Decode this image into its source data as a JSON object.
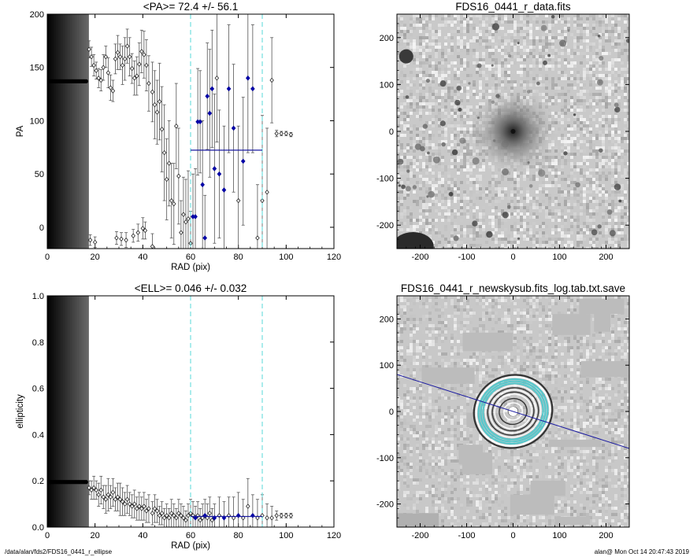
{
  "chart_data": [
    {
      "id": "pa",
      "type": "scatter",
      "title": "<PA>=  72.4 +/-  56.1",
      "xlabel": "RAD (pix)",
      "ylabel": "PA",
      "xlim": [
        0,
        120
      ],
      "ylim": [
        -20,
        200
      ],
      "xticks": [
        "0",
        "20",
        "40",
        "60",
        "80",
        "100",
        "120"
      ],
      "yticks": [
        "0",
        "50",
        "100",
        "150",
        "200"
      ],
      "xtick_values": [
        0,
        20,
        40,
        60,
        80,
        100,
        120
      ],
      "ytick_values": [
        0,
        50,
        100,
        150,
        200
      ],
      "fit_range": [
        60,
        90
      ],
      "mean_value": 72.4,
      "inner_flat_value": 137,
      "points": [
        [
          17.5,
          167,
          8
        ],
        [
          18.5,
          160,
          9
        ],
        [
          19.5,
          152,
          10
        ],
        [
          20.5,
          147,
          8
        ],
        [
          21.5,
          140,
          9
        ],
        [
          22.5,
          138,
          10
        ],
        [
          23.5,
          150,
          12
        ],
        [
          24.5,
          160,
          10
        ],
        [
          25.5,
          145,
          14
        ],
        [
          26.5,
          131,
          12
        ],
        [
          27.5,
          128,
          10
        ],
        [
          28.5,
          158,
          14
        ],
        [
          29.5,
          164,
          16
        ],
        [
          30.5,
          160,
          12
        ],
        [
          31.5,
          152,
          18
        ],
        [
          32.5,
          158,
          20
        ],
        [
          33.5,
          170,
          16
        ],
        [
          34.5,
          160,
          18
        ],
        [
          35.5,
          149,
          14
        ],
        [
          36.5,
          140,
          16
        ],
        [
          37.5,
          142,
          18
        ],
        [
          38.5,
          153,
          20
        ],
        [
          39.5,
          165,
          20
        ],
        [
          40.5,
          162,
          22
        ],
        [
          41.5,
          152,
          24
        ],
        [
          42.5,
          135,
          26
        ],
        [
          44,
          127,
          28
        ],
        [
          45,
          115,
          32
        ],
        [
          46,
          108,
          30
        ],
        [
          47,
          118,
          36
        ],
        [
          48,
          92,
          40
        ],
        [
          49,
          70,
          45
        ],
        [
          50,
          45,
          38
        ],
        [
          51,
          60,
          40
        ],
        [
          52,
          25,
          35
        ],
        [
          53,
          22,
          38
        ],
        [
          54,
          95,
          40
        ],
        [
          55,
          48,
          45
        ],
        [
          56,
          -5,
          30
        ],
        [
          57,
          12,
          35
        ],
        [
          58,
          5,
          40
        ],
        [
          59,
          8,
          45
        ],
        [
          60,
          -15,
          30
        ],
        [
          61,
          10,
          40
        ],
        [
          62,
          10,
          45
        ],
        [
          63,
          99,
          50
        ],
        [
          64,
          99,
          48
        ],
        [
          65,
          40,
          60
        ],
        [
          66,
          -10,
          40
        ],
        [
          67,
          123,
          50
        ],
        [
          68,
          107,
          60
        ],
        [
          69,
          130,
          55
        ],
        [
          70,
          55,
          70
        ],
        [
          71,
          140,
          60
        ],
        [
          72,
          50,
          60
        ],
        [
          74,
          35,
          60
        ],
        [
          76,
          130,
          60
        ],
        [
          78,
          93,
          60
        ],
        [
          80,
          25,
          70
        ],
        [
          82,
          62,
          60
        ],
        [
          84,
          140,
          70
        ],
        [
          86,
          130,
          60
        ],
        [
          88,
          -10,
          50
        ],
        [
          90,
          25,
          80
        ],
        [
          92,
          33,
          60
        ],
        [
          94,
          138,
          40
        ],
        [
          96,
          88,
          3
        ],
        [
          98,
          88,
          2
        ],
        [
          100,
          88,
          2
        ],
        [
          102,
          87,
          2
        ],
        [
          18,
          -12,
          5
        ],
        [
          20,
          -14,
          5
        ],
        [
          29,
          -10,
          6
        ],
        [
          31,
          -11,
          6
        ],
        [
          33,
          -12,
          7
        ],
        [
          36,
          -8,
          6
        ],
        [
          38,
          -5,
          8
        ],
        [
          40,
          -1,
          10
        ],
        [
          41,
          -3,
          8
        ],
        [
          44,
          -18,
          12
        ]
      ],
      "highlighted_points": [
        [
          61,
          10
        ],
        [
          62,
          10
        ],
        [
          63,
          99
        ],
        [
          64,
          99
        ],
        [
          65,
          40
        ],
        [
          66,
          -10
        ],
        [
          67,
          123
        ],
        [
          68,
          107
        ],
        [
          69,
          130
        ],
        [
          70,
          55
        ],
        [
          72,
          50
        ],
        [
          74,
          35
        ],
        [
          76,
          130
        ],
        [
          78,
          93
        ],
        [
          82,
          62
        ],
        [
          84,
          140
        ],
        [
          86,
          130
        ]
      ]
    },
    {
      "id": "ell",
      "type": "scatter",
      "title": "<ELL>= 0.046 +/-  0.032",
      "xlabel": "RAD (pix)",
      "ylabel": "ellipticity",
      "xlim": [
        0,
        120
      ],
      "ylim": [
        0,
        1.0
      ],
      "xticks": [
        "0",
        "20",
        "40",
        "60",
        "80",
        "100",
        "120"
      ],
      "yticks": [
        "0.0",
        "0.2",
        "0.4",
        "0.6",
        "0.8",
        "1.0"
      ],
      "xtick_values": [
        0,
        20,
        40,
        60,
        80,
        100,
        120
      ],
      "ytick_values": [
        0,
        0.2,
        0.4,
        0.6,
        0.8,
        1.0
      ],
      "fit_range": [
        60,
        90
      ],
      "mean_value": 0.046,
      "inner_flat_value": 0.195,
      "points": [
        [
          17.5,
          0.17,
          0.03
        ],
        [
          18.5,
          0.16,
          0.04
        ],
        [
          19.5,
          0.17,
          0.05
        ],
        [
          20.5,
          0.16,
          0.04
        ],
        [
          21.5,
          0.14,
          0.05
        ],
        [
          22.5,
          0.16,
          0.06
        ],
        [
          23.5,
          0.13,
          0.05
        ],
        [
          24.5,
          0.12,
          0.06
        ],
        [
          25.5,
          0.14,
          0.07
        ],
        [
          26.5,
          0.13,
          0.05
        ],
        [
          27.5,
          0.15,
          0.06
        ],
        [
          28.5,
          0.12,
          0.05
        ],
        [
          29.5,
          0.13,
          0.06
        ],
        [
          30.5,
          0.12,
          0.07
        ],
        [
          31.5,
          0.11,
          0.06
        ],
        [
          32.5,
          0.1,
          0.05
        ],
        [
          33.5,
          0.12,
          0.06
        ],
        [
          34.5,
          0.1,
          0.05
        ],
        [
          35.5,
          0.09,
          0.05
        ],
        [
          36.5,
          0.1,
          0.06
        ],
        [
          37.5,
          0.08,
          0.05
        ],
        [
          38.5,
          0.09,
          0.06
        ],
        [
          39.5,
          0.08,
          0.05
        ],
        [
          40.5,
          0.09,
          0.06
        ],
        [
          41.5,
          0.07,
          0.05
        ],
        [
          42.5,
          0.08,
          0.06
        ],
        [
          44,
          0.06,
          0.05
        ],
        [
          45,
          0.08,
          0.06
        ],
        [
          46,
          0.07,
          0.05
        ],
        [
          47,
          0.05,
          0.04
        ],
        [
          48,
          0.06,
          0.05
        ],
        [
          49,
          0.04,
          0.04
        ],
        [
          50,
          0.05,
          0.05
        ],
        [
          51,
          0.04,
          0.04
        ],
        [
          52,
          0.06,
          0.06
        ],
        [
          53,
          0.05,
          0.05
        ],
        [
          54,
          0.04,
          0.04
        ],
        [
          55,
          0.06,
          0.06
        ],
        [
          56,
          0.05,
          0.05
        ],
        [
          57,
          0.04,
          0.05
        ],
        [
          58,
          0.03,
          0.04
        ],
        [
          59,
          0.05,
          0.05
        ],
        [
          60,
          0.06,
          0.06
        ],
        [
          61,
          0.05,
          0.06
        ],
        [
          62,
          0.04,
          0.05
        ],
        [
          63,
          0.05,
          0.06
        ],
        [
          64,
          0.03,
          0.05
        ],
        [
          65,
          0.04,
          0.06
        ],
        [
          66,
          0.05,
          0.07
        ],
        [
          67,
          0.04,
          0.06
        ],
        [
          68,
          0.06,
          0.07
        ],
        [
          69,
          0.03,
          0.05
        ],
        [
          70,
          0.04,
          0.06
        ],
        [
          72,
          0.05,
          0.08
        ],
        [
          74,
          0.04,
          0.07
        ],
        [
          76,
          0.05,
          0.08
        ],
        [
          78,
          0.04,
          0.09
        ],
        [
          80,
          0.05,
          0.1
        ],
        [
          82,
          0.04,
          0.08
        ],
        [
          84,
          0.09,
          0.12
        ],
        [
          86,
          0.05,
          0.09
        ],
        [
          88,
          0.04,
          0.08
        ],
        [
          90,
          0.05,
          0.09
        ],
        [
          92,
          0.04,
          0.06
        ],
        [
          94,
          0.04,
          0.05
        ],
        [
          96,
          0.05,
          0.02
        ],
        [
          98,
          0.05,
          0.01
        ],
        [
          100,
          0.05,
          0.01
        ],
        [
          102,
          0.05,
          0.01
        ]
      ],
      "highlighted_points": [
        [
          62,
          0.04
        ],
        [
          66,
          0.05
        ],
        [
          70,
          0.04
        ],
        [
          74,
          0.04
        ],
        [
          80,
          0.05
        ],
        [
          86,
          0.05
        ]
      ]
    },
    {
      "id": "data",
      "type": "heatmap",
      "title": "FDS16_0441_r_data.fits",
      "xlim": [
        -250,
        250
      ],
      "ylim": [
        -250,
        250
      ],
      "xticks": [
        "-200",
        "-100",
        "0",
        "100",
        "200"
      ],
      "yticks": [
        "-200",
        "-100",
        "0",
        "100",
        "200"
      ],
      "xtick_values": [
        -200,
        -100,
        0,
        100,
        200
      ],
      "ytick_values": [
        -200,
        -100,
        0,
        100,
        200
      ],
      "galaxy_center": [
        0,
        0
      ]
    },
    {
      "id": "model",
      "type": "heatmap",
      "title": "FDS16_0441_r_newskysub.fits_log.tab.txt.save",
      "xlim": [
        -250,
        250
      ],
      "ylim": [
        -250,
        250
      ],
      "xticks": [
        "-200",
        "-100",
        "0",
        "100",
        "200"
      ],
      "yticks": [
        "-200",
        "-100",
        "0",
        "100",
        "200"
      ],
      "xtick_values": [
        -200,
        -100,
        0,
        100,
        200
      ],
      "ytick_values": [
        -200,
        -100,
        0,
        100,
        200
      ],
      "pa_line": {
        "x": [
          -250,
          250
        ],
        "y": [
          80,
          -80
        ]
      },
      "ellipse_radii": [
        10,
        20,
        30,
        40,
        45,
        50,
        55,
        60,
        65,
        70,
        75,
        80,
        85
      ]
    }
  ],
  "footer": {
    "left": "/data/alan/fds2/FDS16_0441_r_ellipse",
    "right": "alan@  Mon Oct 14 20:47:43 2019"
  },
  "colors": {
    "fit_marker": "#0000aa",
    "fit_line": "#1a1aa0",
    "range_line": "#66dddd",
    "background": "#ffffff"
  }
}
